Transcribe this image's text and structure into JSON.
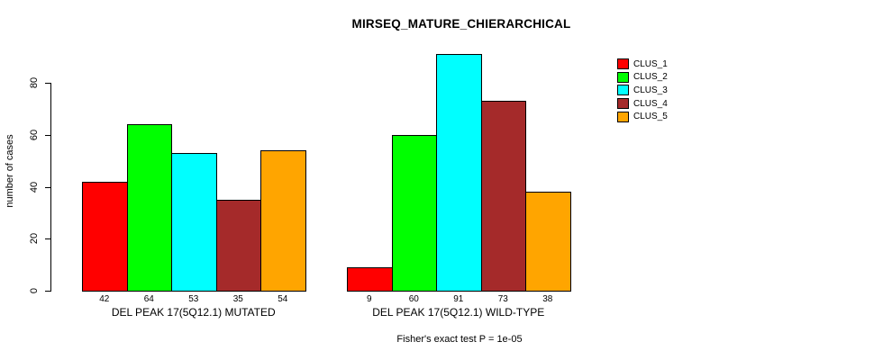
{
  "chart_data": {
    "type": "bar",
    "title": "MIRSEQ_MATURE_CHIERARCHICAL",
    "ylabel": "number of cases",
    "xlabel": "",
    "yticks": [
      0,
      20,
      40,
      60,
      80
    ],
    "ylim": [
      0,
      80
    ],
    "grid": false,
    "legend_position": "right",
    "series_names": [
      "CLUS_1",
      "CLUS_2",
      "CLUS_3",
      "CLUS_4",
      "CLUS_5"
    ],
    "colors": [
      "#ff0000",
      "#00ff00",
      "#00ffff",
      "#a52a2a",
      "#ffa500"
    ],
    "groups": [
      {
        "label": "DEL PEAK 17(5Q12.1) MUTATED",
        "values": [
          42,
          64,
          53,
          35,
          54
        ]
      },
      {
        "label": "DEL PEAK 17(5Q12.1) WILD-TYPE",
        "values": [
          9,
          60,
          91,
          73,
          38
        ]
      }
    ],
    "annotation": "Fisher's exact test P = 1e-05"
  }
}
